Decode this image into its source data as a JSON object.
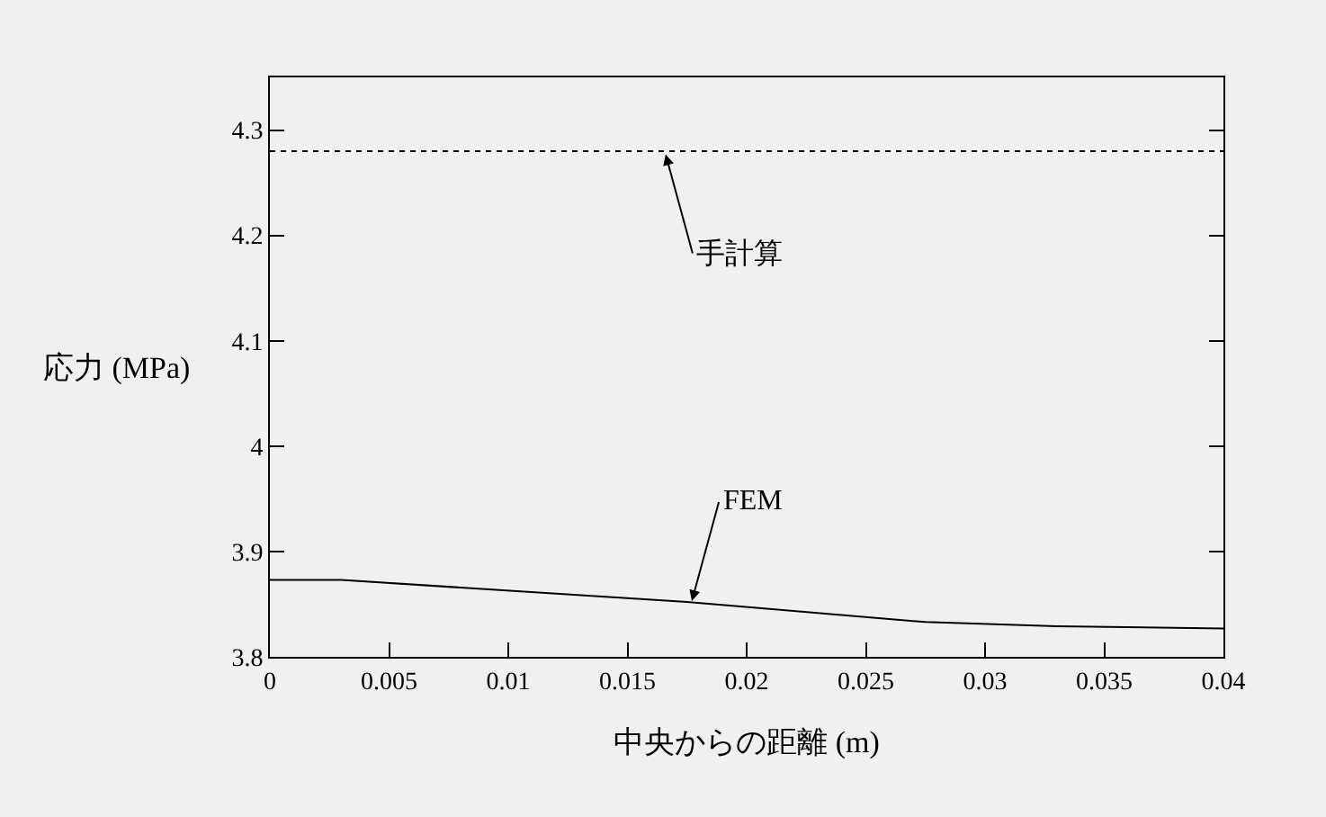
{
  "chart_data": {
    "type": "line",
    "xlabel": "中央からの距離 (m)",
    "ylabel": "応力 (MPa)",
    "xlim": [
      0,
      0.04
    ],
    "xticks": [
      0,
      0.005,
      0.01,
      0.015,
      0.02,
      0.025,
      0.03,
      0.035,
      0.04
    ],
    "ylim": [
      3.8,
      4.35
    ],
    "yticks": [
      3.8,
      3.9,
      4,
      4.1,
      4.2,
      4.3
    ],
    "grid": false,
    "series": [
      {
        "color": "#000000",
        "line_style": "dotted",
        "x": [
          0,
          0.04
        ],
        "values": [
          4.28,
          4.28
        ]
      },
      {
        "color": "#000000",
        "line_style": "solid",
        "x": [
          0,
          0.003,
          0.0175,
          0.0275,
          0.033,
          0.04
        ],
        "values": [
          3.873,
          3.873,
          3.852,
          3.833,
          3.829,
          3.827
        ]
      }
    ],
    "annotations": [
      {
        "text": "手計算",
        "x": 0.0166,
        "y": 4.277
      },
      {
        "text": "FEM",
        "x": 0.0177,
        "y": 3.853
      }
    ]
  }
}
